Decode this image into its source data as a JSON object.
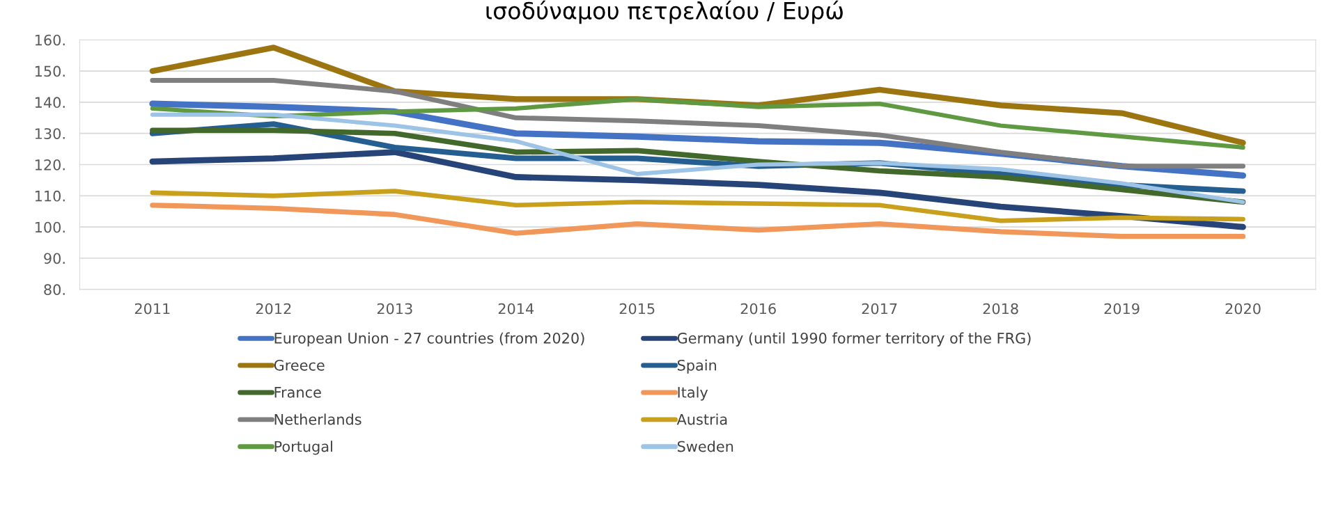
{
  "chart_data": {
    "type": "line",
    "title": "ισοδύναμου πετρελαίου / Ευρώ",
    "categories": [
      "2011",
      "2012",
      "2013",
      "2014",
      "2015",
      "2016",
      "2017",
      "2018",
      "2019",
      "2020"
    ],
    "ylim": [
      80,
      160
    ],
    "yticks": [
      {
        "value": 80,
        "label": "80."
      },
      {
        "value": 90,
        "label": "90."
      },
      {
        "value": 100,
        "label": "100."
      },
      {
        "value": 110,
        "label": "110."
      },
      {
        "value": 120,
        "label": "120."
      },
      {
        "value": 130,
        "label": "130."
      },
      {
        "value": 140,
        "label": "140."
      },
      {
        "value": 150,
        "label": "150."
      },
      {
        "value": 160,
        "label": "160."
      }
    ],
    "grid": "y",
    "legend": "bottom",
    "marker": "none",
    "line_style": "solid",
    "series": [
      {
        "name": "European Union - 27 countries (from 2020)",
        "color": "#4472c4",
        "values": [
          139.5,
          138.5,
          137,
          130,
          129,
          127.5,
          127,
          123.5,
          119.5,
          116.5
        ]
      },
      {
        "name": "Germany (until 1990 former territory of the FRG)",
        "color": "#264478",
        "values": [
          121,
          122,
          124,
          116,
          115,
          113.5,
          111,
          106.5,
          103.5,
          100
        ]
      },
      {
        "name": "Greece",
        "color": "#9c7410",
        "values": [
          150,
          157.5,
          143.5,
          141,
          141,
          139,
          144,
          139,
          136.5,
          127
        ]
      },
      {
        "name": "Spain",
        "color": "#255e91",
        "values": [
          130,
          133,
          125.5,
          122,
          122,
          119.5,
          120.5,
          117,
          113.5,
          111.5
        ]
      },
      {
        "name": "France",
        "color": "#43682b",
        "values": [
          131,
          131,
          130,
          124,
          124.5,
          121,
          118,
          116,
          112,
          108
        ]
      },
      {
        "name": "Italy",
        "color": "#f1975a",
        "values": [
          107,
          106,
          104,
          98,
          101,
          99,
          101,
          98.5,
          97,
          97
        ]
      },
      {
        "name": "Netherlands",
        "color": "#7f7f7f",
        "values": [
          147,
          147,
          143.5,
          135,
          134,
          132.5,
          129.5,
          124,
          119.5,
          119.5
        ]
      },
      {
        "name": "Austria",
        "color": "#c9a01b",
        "values": [
          111,
          110,
          111.5,
          107,
          108,
          107.5,
          107,
          102,
          103,
          102.5
        ]
      },
      {
        "name": "Portugal",
        "color": "#5f9a42",
        "values": [
          138,
          135.5,
          137,
          138,
          141,
          138.5,
          139.5,
          132.5,
          129,
          125.5
        ]
      },
      {
        "name": "Sweden",
        "color": "#9dc3e6",
        "values": [
          136,
          136,
          132.5,
          127.5,
          117,
          120,
          120.5,
          118.5,
          114,
          108
        ]
      }
    ]
  }
}
